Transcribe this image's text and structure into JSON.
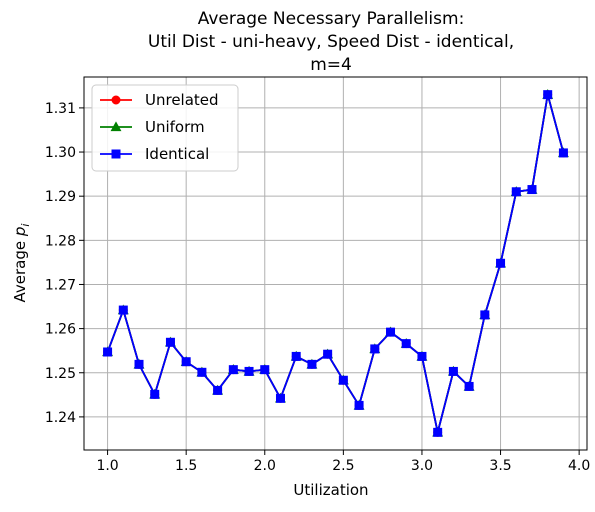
{
  "chart_data": {
    "type": "line",
    "title_lines": [
      "Average Necessary Parallelism:",
      "Util Dist - uni-heavy, Speed Dist - identical,",
      "m=4"
    ],
    "xlabel": "Utilization",
    "ylabel_main": "Average ",
    "ylabel_sym": "p",
    "ylabel_sub": "i",
    "xlim": [
      0.85,
      4.05
    ],
    "ylim": [
      1.2325,
      1.317
    ],
    "xticks": [
      1.0,
      1.5,
      2.0,
      2.5,
      3.0,
      3.5,
      4.0
    ],
    "xtick_labels": [
      "1.0",
      "1.5",
      "2.0",
      "2.5",
      "3.0",
      "3.5",
      "4.0"
    ],
    "yticks": [
      1.24,
      1.25,
      1.26,
      1.27,
      1.28,
      1.29,
      1.3,
      1.31
    ],
    "ytick_labels": [
      "1.24",
      "1.25",
      "1.26",
      "1.27",
      "1.28",
      "1.29",
      "1.30",
      "1.31"
    ],
    "grid": true,
    "legend_position": "upper-left",
    "x": [
      1.0,
      1.1,
      1.2,
      1.3,
      1.4,
      1.5,
      1.6,
      1.7,
      1.8,
      1.9,
      2.0,
      2.1,
      2.2,
      2.3,
      2.4,
      2.5,
      2.6,
      2.7,
      2.8,
      2.9,
      3.0,
      3.1,
      3.2,
      3.3,
      3.4,
      3.5,
      3.6,
      3.7,
      3.8,
      3.9
    ],
    "series": [
      {
        "name": "Unrelated",
        "color": "#ff0000",
        "marker": "circle",
        "values": [
          1.2547,
          1.2642,
          1.2519,
          1.2451,
          1.2569,
          1.2525,
          1.2501,
          1.246,
          1.2507,
          1.2503,
          1.2507,
          1.2442,
          1.2537,
          1.2519,
          1.2542,
          1.2483,
          1.2426,
          1.2554,
          1.2592,
          1.2566,
          1.2537,
          1.2365,
          1.2503,
          1.2469,
          1.2631,
          1.2748,
          1.291,
          1.2915,
          1.313,
          1.2998
        ]
      },
      {
        "name": "Uniform",
        "color": "#008000",
        "marker": "triangle",
        "values": [
          1.2547,
          1.2642,
          1.2519,
          1.2451,
          1.2569,
          1.2525,
          1.2501,
          1.246,
          1.2507,
          1.2503,
          1.2507,
          1.2442,
          1.2537,
          1.2519,
          1.2542,
          1.2483,
          1.2426,
          1.2554,
          1.2592,
          1.2566,
          1.2537,
          1.2365,
          1.2503,
          1.2469,
          1.2631,
          1.2748,
          1.291,
          1.2915,
          1.313,
          1.2998
        ]
      },
      {
        "name": "Identical",
        "color": "#0000ff",
        "marker": "square",
        "values": [
          1.2547,
          1.2642,
          1.2519,
          1.2451,
          1.2569,
          1.2525,
          1.2501,
          1.246,
          1.2507,
          1.2503,
          1.2507,
          1.2442,
          1.2537,
          1.2519,
          1.2542,
          1.2483,
          1.2426,
          1.2554,
          1.2592,
          1.2566,
          1.2537,
          1.2365,
          1.2503,
          1.2469,
          1.2631,
          1.2748,
          1.291,
          1.2915,
          1.313,
          1.2998
        ]
      }
    ]
  }
}
